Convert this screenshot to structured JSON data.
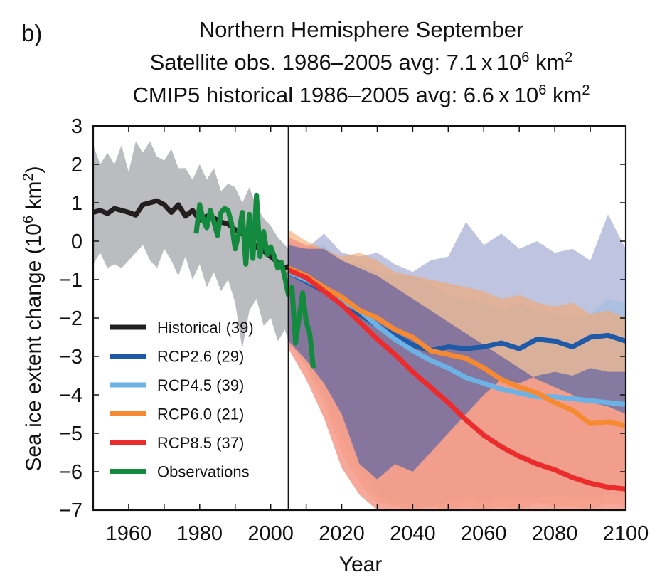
{
  "chart_data": {
    "type": "line",
    "panel_label": "b)",
    "title_lines": [
      {
        "text": "Northern Hemisphere September",
        "sup": []
      },
      {
        "parts": [
          "Satellite obs. 1986–2005 avg: 7.1 x 10",
          "6",
          " km",
          "2"
        ]
      },
      {
        "parts": [
          "CMIP5 historical 1986–2005 avg: 6.6 x 10",
          "6",
          " km",
          "2"
        ]
      }
    ],
    "xlabel": "Year",
    "ylabel_parts": [
      "Sea ice extent change (10",
      "6",
      " km",
      "2",
      ")"
    ],
    "xlim": [
      1950,
      2100
    ],
    "ylim": [
      -7,
      3
    ],
    "xticks_minor_step": 10,
    "xtick_labels": [
      1960,
      1980,
      2000,
      2020,
      2040,
      2060,
      2080,
      2100
    ],
    "ytick_labels": [
      3,
      2,
      1,
      0,
      -1,
      -2,
      -3,
      -4,
      -5,
      -6,
      -7
    ],
    "divider_year": 2005,
    "grid": false,
    "legend_position": "lower-left",
    "colors": {
      "historical": "#231f20",
      "rcp26": "#1f5aa8",
      "rcp45": "#6cb2e4",
      "rcp60": "#f58a33",
      "rcp85": "#ec2c2c",
      "observations": "#138a3e",
      "hist_band": "#bbbcc0",
      "rcp26_band": "#8b93c8",
      "rcp45_band": "#9cc0e4",
      "rcp60_band": "#f6a76a",
      "rcp85_band": "#f4998a",
      "overlap": "#7a72a0"
    },
    "series": [
      {
        "key": "historical",
        "name": "Historical (39)",
        "x": [
          1950,
          1952,
          1954,
          1956,
          1958,
          1960,
          1962,
          1964,
          1966,
          1968,
          1970,
          1972,
          1974,
          1976,
          1978,
          1980,
          1982,
          1984,
          1986,
          1988,
          1990,
          1992,
          1994,
          1996,
          1998,
          2000,
          2002,
          2004,
          2005
        ],
        "y": [
          0.75,
          0.8,
          0.72,
          0.85,
          0.8,
          0.75,
          0.68,
          0.95,
          1.0,
          1.05,
          0.95,
          0.75,
          0.95,
          0.65,
          0.8,
          0.55,
          0.65,
          0.6,
          0.5,
          0.45,
          0.3,
          0.2,
          0.05,
          -0.15,
          -0.25,
          -0.4,
          -0.55,
          -0.7,
          -0.65
        ]
      },
      {
        "key": "observations",
        "name": "Observations",
        "x": [
          1979,
          1980,
          1981,
          1982,
          1983,
          1984,
          1985,
          1986,
          1987,
          1988,
          1989,
          1990,
          1991,
          1992,
          1993,
          1994,
          1995,
          1996,
          1997,
          1998,
          1999,
          2000,
          2001,
          2002,
          2003,
          2004,
          2005,
          2006,
          2007,
          2008,
          2009,
          2010,
          2011,
          2012
        ],
        "y": [
          0.2,
          0.95,
          0.55,
          0.35,
          0.8,
          0.5,
          0.15,
          0.75,
          0.85,
          0.8,
          0.45,
          -0.2,
          0.2,
          0.75,
          -0.6,
          0.7,
          -0.45,
          1.2,
          -0.4,
          0.25,
          -0.35,
          -0.15,
          -0.4,
          -0.7,
          -0.55,
          -0.95,
          -1.4,
          -1.2,
          -2.65,
          -2.0,
          -1.35,
          -2.1,
          -2.4,
          -3.3
        ]
      },
      {
        "key": "rcp26",
        "name": "RCP2.6 (29)",
        "x": [
          2005,
          2010,
          2015,
          2020,
          2025,
          2030,
          2035,
          2040,
          2045,
          2050,
          2055,
          2060,
          2065,
          2070,
          2075,
          2080,
          2085,
          2090,
          2095,
          2100
        ],
        "y": [
          -0.8,
          -1.05,
          -1.3,
          -1.6,
          -1.9,
          -2.2,
          -2.45,
          -2.7,
          -2.85,
          -2.75,
          -2.8,
          -2.75,
          -2.65,
          -2.8,
          -2.55,
          -2.6,
          -2.75,
          -2.5,
          -2.45,
          -2.6
        ]
      },
      {
        "key": "rcp45",
        "name": "RCP4.5 (39)",
        "x": [
          2005,
          2010,
          2015,
          2020,
          2025,
          2030,
          2035,
          2040,
          2045,
          2050,
          2055,
          2060,
          2065,
          2070,
          2075,
          2080,
          2085,
          2090,
          2095,
          2100
        ],
        "y": [
          -0.8,
          -1.0,
          -1.25,
          -1.55,
          -1.8,
          -2.2,
          -2.55,
          -2.85,
          -3.1,
          -3.3,
          -3.55,
          -3.7,
          -3.85,
          -3.95,
          -4.05,
          -4.05,
          -4.1,
          -4.15,
          -4.2,
          -4.25
        ]
      },
      {
        "key": "rcp60",
        "name": "RCP6.0 (21)",
        "x": [
          2005,
          2010,
          2015,
          2020,
          2025,
          2030,
          2035,
          2040,
          2045,
          2050,
          2055,
          2060,
          2065,
          2070,
          2075,
          2080,
          2085,
          2090,
          2095,
          2100
        ],
        "y": [
          -0.7,
          -0.9,
          -1.2,
          -1.45,
          -1.8,
          -2.0,
          -2.3,
          -2.5,
          -2.85,
          -2.95,
          -3.05,
          -3.3,
          -3.6,
          -3.8,
          -3.95,
          -4.2,
          -4.4,
          -4.75,
          -4.7,
          -4.8
        ]
      },
      {
        "key": "rcp85",
        "name": "RCP8.5 (37)",
        "x": [
          2005,
          2010,
          2015,
          2020,
          2025,
          2030,
          2035,
          2040,
          2045,
          2050,
          2055,
          2060,
          2065,
          2070,
          2075,
          2080,
          2085,
          2090,
          2095,
          2100
        ],
        "y": [
          -0.75,
          -0.95,
          -1.3,
          -1.65,
          -2.1,
          -2.55,
          -2.95,
          -3.4,
          -3.8,
          -4.2,
          -4.65,
          -5.05,
          -5.35,
          -5.6,
          -5.8,
          -5.95,
          -6.15,
          -6.3,
          -6.4,
          -6.45
        ]
      }
    ],
    "bands": [
      {
        "key": "hist_band",
        "name": "Historical range",
        "x": [
          1950,
          1952,
          1954,
          1956,
          1958,
          1960,
          1962,
          1964,
          1966,
          1968,
          1970,
          1972,
          1974,
          1976,
          1978,
          1980,
          1982,
          1984,
          1986,
          1988,
          1990,
          1992,
          1994,
          1996,
          1998,
          2000,
          2002,
          2004,
          2005
        ],
        "upper": [
          2.5,
          2.0,
          2.3,
          2.0,
          2.5,
          1.8,
          2.6,
          2.3,
          2.6,
          2.2,
          2.1,
          2.4,
          1.9,
          1.9,
          1.6,
          2.0,
          1.6,
          1.9,
          1.3,
          1.5,
          1.4,
          1.0,
          1.4,
          0.9,
          0.6,
          0.4,
          0.1,
          -0.1,
          -0.2
        ],
        "lower": [
          -0.6,
          -0.3,
          -0.7,
          -0.6,
          -0.7,
          -0.5,
          -0.3,
          -0.1,
          -0.5,
          -0.7,
          -0.2,
          -0.5,
          -0.9,
          -0.4,
          -1.0,
          -0.6,
          -1.2,
          -0.8,
          -1.3,
          -1.0,
          -1.6,
          -2.8,
          -1.8,
          -1.5,
          -2.2,
          -2.0,
          -2.6,
          -2.3,
          -2.6
        ]
      },
      {
        "key": "rcp26_band",
        "name": "RCP2.6 range",
        "x": [
          2005,
          2010,
          2015,
          2020,
          2025,
          2030,
          2035,
          2040,
          2045,
          2050,
          2055,
          2060,
          2065,
          2070,
          2075,
          2080,
          2085,
          2090,
          2095,
          2100
        ],
        "upper": [
          -0.1,
          -0.2,
          0.2,
          -0.3,
          -0.4,
          -0.3,
          -0.6,
          -0.8,
          -0.5,
          -0.4,
          0.5,
          -0.1,
          0.2,
          -0.2,
          0.0,
          -0.3,
          -0.2,
          -0.5,
          0.7,
          -0.2
        ],
        "lower": [
          -2.6,
          -3.1,
          -3.7,
          -4.5,
          -5.8,
          -6.2,
          -5.8,
          -6.0,
          -5.5,
          -5.0,
          -4.5,
          -4.0,
          -3.6,
          -3.7,
          -3.5,
          -3.4,
          -3.5,
          -3.3,
          -3.4,
          -3.4
        ]
      },
      {
        "key": "rcp45_band",
        "name": "RCP4.5 range",
        "x": [
          2005,
          2010,
          2015,
          2020,
          2025,
          2030,
          2035,
          2040,
          2045,
          2050,
          2055,
          2060,
          2065,
          2070,
          2075,
          2080,
          2085,
          2090,
          2095,
          2100
        ],
        "upper": [
          0.1,
          -0.2,
          -0.1,
          -0.5,
          -0.6,
          -0.8,
          -0.9,
          -0.9,
          -1.1,
          -1.4,
          -1.5,
          -1.6,
          -1.8,
          -1.6,
          -1.8,
          -1.9,
          -2.0,
          -1.9,
          -1.5,
          -1.6
        ],
        "lower": [
          -2.7,
          -3.2,
          -4.0,
          -5.1,
          -6.0,
          -6.6,
          -6.8,
          -6.9,
          -6.9,
          -6.8,
          -6.7,
          -6.8,
          -6.7,
          -6.7,
          -6.7,
          -6.6,
          -6.7,
          -6.7,
          -6.6,
          -6.6
        ]
      },
      {
        "key": "rcp60_band",
        "name": "RCP6.0 range",
        "x": [
          2005,
          2010,
          2015,
          2020,
          2025,
          2030,
          2035,
          2040,
          2045,
          2050,
          2055,
          2060,
          2065,
          2070,
          2075,
          2080,
          2085,
          2090,
          2095,
          2100
        ],
        "upper": [
          0.3,
          0.0,
          -0.2,
          -0.4,
          -0.3,
          -0.5,
          -0.8,
          -0.9,
          -1.0,
          -1.1,
          -1.2,
          -1.3,
          -1.5,
          -1.4,
          -1.6,
          -1.7,
          -1.6,
          -1.9,
          -1.8,
          -2.0
        ],
        "lower": [
          -2.6,
          -3.3,
          -4.2,
          -5.5,
          -6.3,
          -6.8,
          -6.9,
          -7.0,
          -6.9,
          -7.0,
          -6.9,
          -7.0,
          -6.9,
          -7.0,
          -6.8,
          -6.9,
          -6.9,
          -7.0,
          -6.8,
          -6.9
        ]
      },
      {
        "key": "rcp85_band",
        "name": "RCP8.5 range",
        "x": [
          2005,
          2010,
          2015,
          2020,
          2025,
          2030,
          2035,
          2040,
          2045,
          2050,
          2055,
          2060,
          2065,
          2070,
          2075,
          2080,
          2085,
          2090,
          2095,
          2100
        ],
        "upper": [
          0.1,
          -0.1,
          -0.2,
          -0.5,
          -0.7,
          -0.9,
          -1.2,
          -1.5,
          -1.8,
          -2.1,
          -2.4,
          -2.7,
          -3.0,
          -3.3,
          -3.6,
          -3.8,
          -4.0,
          -4.2,
          -4.3,
          -4.5
        ],
        "lower": [
          -2.8,
          -3.6,
          -4.6,
          -5.9,
          -6.6,
          -7.0,
          -7.0,
          -7.0,
          -7.0,
          -7.0,
          -7.0,
          -7.0,
          -7.0,
          -7.0,
          -7.0,
          -7.0,
          -7.0,
          -7.0,
          -7.0,
          -7.0
        ]
      }
    ],
    "legend": [
      {
        "key": "historical",
        "label": "Historical (39)"
      },
      {
        "key": "rcp26",
        "label": "RCP2.6 (29)"
      },
      {
        "key": "rcp45",
        "label": "RCP4.5 (39)"
      },
      {
        "key": "rcp60",
        "label": "RCP6.0 (21)"
      },
      {
        "key": "rcp85",
        "label": "RCP8.5 (37)"
      },
      {
        "key": "observations",
        "label": "Observations"
      }
    ]
  }
}
